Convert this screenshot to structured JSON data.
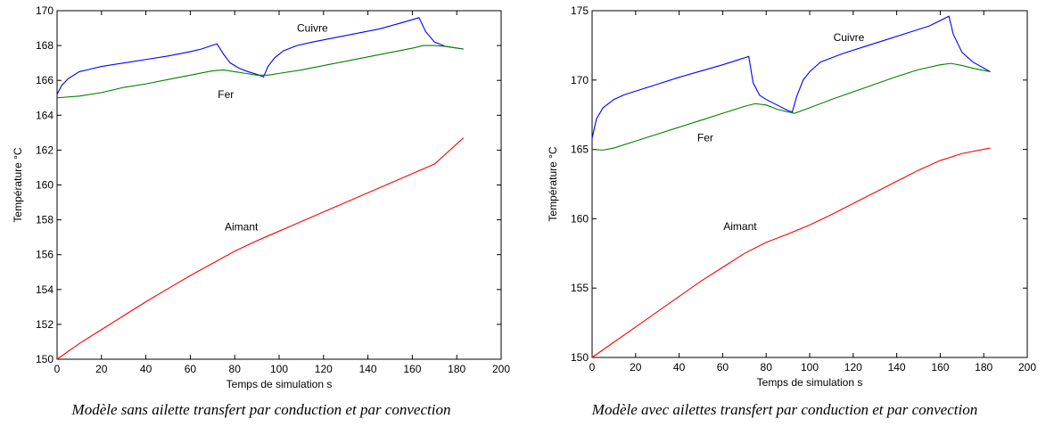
{
  "chart_data": [
    {
      "type": "line",
      "caption": "Modèle sans ailette transfert par conduction et par convection",
      "xlabel": "Temps de simulation s",
      "ylabel": "Température °C",
      "xlim": [
        0,
        200
      ],
      "ylim": [
        150,
        170
      ],
      "xticks": [
        0,
        20,
        40,
        60,
        80,
        100,
        120,
        140,
        160,
        180,
        200
      ],
      "yticks": [
        150,
        152,
        154,
        156,
        158,
        160,
        162,
        164,
        166,
        168,
        170
      ],
      "grid": false,
      "legend": "none",
      "series": [
        {
          "name": "Cuivre",
          "color": "#0000ff",
          "label_at": [
            115,
            168.8
          ],
          "points": [
            [
              0,
              165.2
            ],
            [
              2,
              165.7
            ],
            [
              5,
              166.1
            ],
            [
              10,
              166.5
            ],
            [
              15,
              166.65
            ],
            [
              20,
              166.8
            ],
            [
              30,
              167.0
            ],
            [
              40,
              167.2
            ],
            [
              50,
              167.4
            ],
            [
              60,
              167.65
            ],
            [
              65,
              167.8
            ],
            [
              72,
              168.1
            ],
            [
              75,
              167.5
            ],
            [
              78,
              167.0
            ],
            [
              82,
              166.7
            ],
            [
              86,
              166.5
            ],
            [
              90,
              166.35
            ],
            [
              93,
              166.2
            ],
            [
              95,
              166.8
            ],
            [
              98,
              167.3
            ],
            [
              102,
              167.7
            ],
            [
              108,
              168.0
            ],
            [
              115,
              168.2
            ],
            [
              125,
              168.45
            ],
            [
              135,
              168.7
            ],
            [
              145,
              168.95
            ],
            [
              155,
              169.3
            ],
            [
              163,
              169.6
            ],
            [
              166,
              168.8
            ],
            [
              170,
              168.2
            ],
            [
              175,
              167.95
            ],
            [
              183,
              167.8
            ]
          ]
        },
        {
          "name": "Fer",
          "color": "#008000",
          "label_at": [
            76,
            165.0
          ],
          "points": [
            [
              0,
              165.0
            ],
            [
              10,
              165.1
            ],
            [
              20,
              165.3
            ],
            [
              30,
              165.6
            ],
            [
              40,
              165.8
            ],
            [
              50,
              166.05
            ],
            [
              60,
              166.3
            ],
            [
              70,
              166.55
            ],
            [
              75,
              166.6
            ],
            [
              80,
              166.5
            ],
            [
              85,
              166.4
            ],
            [
              90,
              166.3
            ],
            [
              95,
              166.3
            ],
            [
              100,
              166.4
            ],
            [
              110,
              166.6
            ],
            [
              120,
              166.85
            ],
            [
              130,
              167.1
            ],
            [
              140,
              167.35
            ],
            [
              150,
              167.6
            ],
            [
              160,
              167.85
            ],
            [
              165,
              168.0
            ],
            [
              170,
              168.0
            ],
            [
              175,
              167.95
            ],
            [
              183,
              167.8
            ]
          ]
        },
        {
          "name": "Aimant",
          "color": "#ff0000",
          "label_at": [
            83,
            157.4
          ],
          "points": [
            [
              0,
              150.0
            ],
            [
              10,
              150.9
            ],
            [
              20,
              151.7
            ],
            [
              30,
              152.5
            ],
            [
              40,
              153.3
            ],
            [
              50,
              154.05
            ],
            [
              60,
              154.8
            ],
            [
              70,
              155.5
            ],
            [
              80,
              156.2
            ],
            [
              90,
              156.8
            ],
            [
              100,
              157.35
            ],
            [
              110,
              157.9
            ],
            [
              120,
              158.45
            ],
            [
              130,
              159.0
            ],
            [
              140,
              159.55
            ],
            [
              150,
              160.1
            ],
            [
              160,
              160.65
            ],
            [
              170,
              161.2
            ],
            [
              183,
              162.7
            ]
          ]
        }
      ]
    },
    {
      "type": "line",
      "caption": "Modèle avec ailettes transfert par conduction et par convection",
      "xlabel": "Temps de simulation s",
      "ylabel": "Température °C",
      "xlim": [
        0,
        200
      ],
      "ylim": [
        150,
        175
      ],
      "xticks": [
        0,
        20,
        40,
        60,
        80,
        100,
        120,
        140,
        160,
        180,
        200
      ],
      "yticks": [
        150,
        155,
        160,
        165,
        170,
        175
      ],
      "grid": false,
      "legend": "none",
      "series": [
        {
          "name": "Cuivre",
          "color": "#0000ff",
          "label_at": [
            118,
            172.8
          ],
          "points": [
            [
              0,
              165.8
            ],
            [
              2,
              167.2
            ],
            [
              5,
              168.0
            ],
            [
              10,
              168.6
            ],
            [
              15,
              168.95
            ],
            [
              20,
              169.2
            ],
            [
              30,
              169.7
            ],
            [
              40,
              170.2
            ],
            [
              50,
              170.65
            ],
            [
              60,
              171.1
            ],
            [
              65,
              171.35
            ],
            [
              72,
              171.7
            ],
            [
              74,
              169.8
            ],
            [
              77,
              168.9
            ],
            [
              80,
              168.6
            ],
            [
              85,
              168.2
            ],
            [
              90,
              167.8
            ],
            [
              92,
              167.7
            ],
            [
              94,
              168.8
            ],
            [
              97,
              170.0
            ],
            [
              100,
              170.6
            ],
            [
              105,
              171.3
            ],
            [
              115,
              171.9
            ],
            [
              125,
              172.4
            ],
            [
              135,
              172.9
            ],
            [
              145,
              173.4
            ],
            [
              155,
              173.9
            ],
            [
              164,
              174.6
            ],
            [
              166,
              173.3
            ],
            [
              170,
              172.0
            ],
            [
              175,
              171.3
            ],
            [
              183,
              170.6
            ]
          ]
        },
        {
          "name": "Fer",
          "color": "#008000",
          "label_at": [
            52,
            165.6
          ],
          "points": [
            [
              0,
              165.0
            ],
            [
              5,
              164.95
            ],
            [
              10,
              165.1
            ],
            [
              20,
              165.6
            ],
            [
              30,
              166.1
            ],
            [
              40,
              166.6
            ],
            [
              50,
              167.1
            ],
            [
              60,
              167.6
            ],
            [
              70,
              168.1
            ],
            [
              75,
              168.3
            ],
            [
              80,
              168.2
            ],
            [
              85,
              167.9
            ],
            [
              90,
              167.7
            ],
            [
              93,
              167.6
            ],
            [
              100,
              168.0
            ],
            [
              110,
              168.6
            ],
            [
              120,
              169.15
            ],
            [
              130,
              169.7
            ],
            [
              140,
              170.25
            ],
            [
              150,
              170.75
            ],
            [
              160,
              171.1
            ],
            [
              165,
              171.2
            ],
            [
              170,
              171.05
            ],
            [
              175,
              170.85
            ],
            [
              183,
              170.6
            ]
          ]
        },
        {
          "name": "Aimant",
          "color": "#ff0000",
          "label_at": [
            68,
            159.2
          ],
          "points": [
            [
              0,
              150.0
            ],
            [
              10,
              151.1
            ],
            [
              20,
              152.2
            ],
            [
              30,
              153.3
            ],
            [
              40,
              154.4
            ],
            [
              50,
              155.5
            ],
            [
              60,
              156.5
            ],
            [
              70,
              157.5
            ],
            [
              80,
              158.3
            ],
            [
              90,
              158.9
            ],
            [
              100,
              159.55
            ],
            [
              110,
              160.3
            ],
            [
              120,
              161.1
            ],
            [
              130,
              161.9
            ],
            [
              140,
              162.7
            ],
            [
              150,
              163.5
            ],
            [
              160,
              164.2
            ],
            [
              170,
              164.7
            ],
            [
              183,
              165.1
            ]
          ]
        }
      ]
    }
  ]
}
